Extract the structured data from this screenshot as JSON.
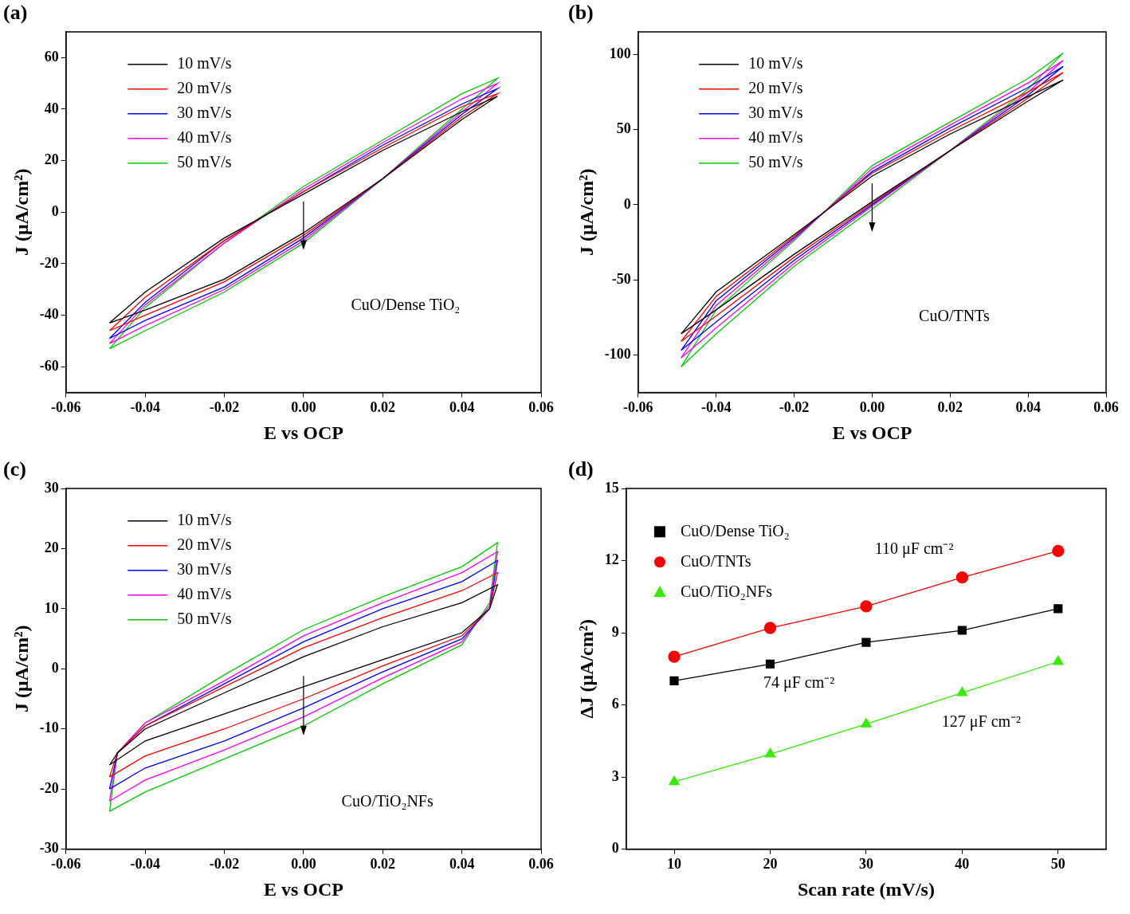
{
  "chart_data": [
    {
      "type": "scatter",
      "title": "(a)",
      "x_label": "E vs OCP",
      "y_label": "J (μA/cm²)",
      "annotations": [
        "CuO/Dense TiO₂"
      ],
      "xlim": [
        -0.06,
        0.06
      ],
      "xticks": [
        -0.06,
        -0.04,
        -0.02,
        {
          "value": 0,
          "label": "0.00"
        },
        0.02,
        0.04,
        0.06
      ],
      "ylim": [
        -70,
        70
      ],
      "yticks": [
        -60,
        -40,
        -20,
        0,
        20,
        40,
        60
      ],
      "grid": false,
      "legend": "upper left",
      "marker": "none",
      "line_style": "solid",
      "x": [
        -0.049,
        -0.04,
        -0.02,
        0,
        0.02,
        0.04,
        0.049,
        0.04,
        0.02,
        0,
        -0.02,
        -0.04,
        -0.049
      ],
      "series": [
        {
          "name": "10 mV/s",
          "color": "#000000",
          "values": [
            -43,
            -31,
            -10,
            7,
            24,
            39,
            45,
            36,
            13,
            -8,
            -26,
            -38,
            -43
          ]
        },
        {
          "name": "20 mV/s",
          "color": "#ff0000",
          "values": [
            -46,
            -33,
            -11,
            8,
            25,
            41,
            46,
            37,
            13,
            -9,
            -27,
            -40,
            -46
          ]
        },
        {
          "name": "30 mV/s",
          "color": "#0000ff",
          "values": [
            -49,
            -35,
            -11,
            8,
            26,
            42,
            48,
            38,
            13,
            -10,
            -29,
            -42,
            -49
          ]
        },
        {
          "name": "40 mV/s",
          "color": "#ff00ff",
          "values": [
            -51,
            -36,
            -12,
            9,
            27,
            44,
            50,
            39,
            13,
            -11,
            -30,
            -44,
            -51
          ]
        },
        {
          "name": "50 mV/s",
          "color": "#00cc00",
          "values": [
            -53,
            -37,
            -12,
            10,
            28,
            46,
            52,
            40,
            13,
            -12,
            -31,
            -46,
            -53
          ]
        }
      ]
    },
    {
      "type": "scatter",
      "title": "(b)",
      "x_label": "E vs OCP",
      "y_label": "J (μA/cm²)",
      "annotations": [
        "CuO/TNTs"
      ],
      "xlim": [
        -0.06,
        0.06
      ],
      "xticks": [
        -0.06,
        -0.04,
        -0.02,
        {
          "value": 0,
          "label": "0.00"
        },
        0.02,
        0.04,
        0.06
      ],
      "ylim": [
        -125,
        115
      ],
      "yticks": [
        -100,
        -50,
        0,
        50,
        100
      ],
      "grid": false,
      "legend": "upper left",
      "marker": "none",
      "line_style": "solid",
      "x": [
        -0.049,
        -0.04,
        -0.02,
        0,
        0.02,
        0.04,
        0.049,
        0.04,
        0.02,
        0,
        -0.02,
        -0.04,
        -0.049
      ],
      "series": [
        {
          "name": "10 mV/s",
          "color": "#000000",
          "values": [
            -86,
            -58,
            -20,
            19,
            47,
            72,
            83,
            69,
            36,
            2,
            -33,
            -70,
            -86
          ]
        },
        {
          "name": "20 mV/s",
          "color": "#ff0000",
          "values": [
            -91,
            -61,
            -21,
            21,
            49,
            75,
            88,
            71,
            36,
            1,
            -35,
            -74,
            -91
          ]
        },
        {
          "name": "30 mV/s",
          "color": "#0000ff",
          "values": [
            -97,
            -64,
            -22,
            22,
            51,
            78,
            92,
            73,
            36,
            0,
            -37,
            -78,
            -97
          ]
        },
        {
          "name": "40 mV/s",
          "color": "#ff00ff",
          "values": [
            -102,
            -67,
            -23,
            24,
            53,
            81,
            96,
            75,
            36,
            -1,
            -39,
            -82,
            -102
          ]
        },
        {
          "name": "50 mV/s",
          "color": "#00cc00",
          "values": [
            -108,
            -70,
            -24,
            26,
            55,
            84,
            101,
            77,
            36,
            -3,
            -41,
            -86,
            -108
          ]
        }
      ]
    },
    {
      "type": "scatter",
      "title": "(c)",
      "x_label": "E vs OCP",
      "y_label": "J (μA/cm²)",
      "annotations": [
        "CuO/TiO₂NFs"
      ],
      "xlim": [
        -0.06,
        0.06
      ],
      "xticks": [
        -0.06,
        -0.04,
        -0.02,
        {
          "value": 0,
          "label": "0.00"
        },
        0.02,
        0.04,
        0.06
      ],
      "ylim": [
        -30,
        30
      ],
      "yticks": [
        -30,
        -20,
        -10,
        0,
        10,
        20,
        30
      ],
      "grid": false,
      "legend": "upper left",
      "marker": "none",
      "line_style": "solid",
      "x": [
        -0.049,
        -0.047,
        -0.04,
        -0.02,
        0,
        0.02,
        0.04,
        0.049,
        0.049,
        0.047,
        0.04,
        0.02,
        0,
        -0.02,
        -0.04,
        -0.049
      ],
      "series": [
        {
          "name": "10 mV/s",
          "color": "#000000",
          "values": [
            -16,
            -14,
            -10,
            -4,
            2,
            7,
            11,
            14,
            14,
            10,
            6,
            1.5,
            -3,
            -7.5,
            -12,
            -16
          ]
        },
        {
          "name": "20 mV/s",
          "color": "#ff0000",
          "values": [
            -18,
            -14,
            -9.5,
            -3,
            3.5,
            8.5,
            13,
            16,
            16,
            10,
            5.5,
            0.5,
            -5,
            -10,
            -14.5,
            -18
          ]
        },
        {
          "name": "30 mV/s",
          "color": "#0000ff",
          "values": [
            -20,
            -14,
            -9.5,
            -2.5,
            4.5,
            10,
            14.5,
            18,
            18,
            10,
            5,
            -0.5,
            -6.5,
            -12,
            -16.5,
            -20
          ]
        },
        {
          "name": "40 mV/s",
          "color": "#ff00ff",
          "values": [
            -22,
            -14,
            -9,
            -2,
            5.5,
            11,
            16,
            19.5,
            19.5,
            10.5,
            4.5,
            -1.5,
            -8,
            -13.5,
            -18.5,
            -22
          ]
        },
        {
          "name": "50 mV/s",
          "color": "#00cc00",
          "values": [
            -23.7,
            -14,
            -9,
            -1,
            6.5,
            12,
            17,
            21,
            21,
            11,
            4,
            -2.5,
            -9.5,
            -15,
            -20.5,
            -23.7
          ]
        }
      ]
    },
    {
      "type": "scatter",
      "title": "(d)",
      "x_label": "Scan rate (mV/s)",
      "y_label": "ΔJ (μA/cm²)",
      "annotations": [
        "110 μF cm⁻²",
        "74 μF cm⁻²",
        "127 μF cm⁻²"
      ],
      "xlim": [
        5,
        55
      ],
      "xticks": [
        10,
        20,
        30,
        40,
        50
      ],
      "ylim": [
        0,
        15
      ],
      "yticks": [
        0,
        3,
        6,
        9,
        12,
        15
      ],
      "grid": false,
      "legend": "upper left",
      "line_style": "solid",
      "x": [
        10,
        20,
        30,
        40,
        50
      ],
      "series": [
        {
          "name": "CuO/Dense TiO₂",
          "color": "#000000",
          "marker": "square",
          "values": [
            7.0,
            7.7,
            8.6,
            9.1,
            10.0
          ]
        },
        {
          "name": "CuO/TNTs",
          "color": "#ff0000",
          "marker": "circle",
          "values": [
            8.0,
            9.2,
            10.1,
            11.3,
            12.4
          ]
        },
        {
          "name": "CuO/TiO₂NFs",
          "color": "#33ee00",
          "marker": "triangle",
          "values": [
            2.8,
            3.95,
            5.2,
            6.5,
            7.8
          ]
        }
      ]
    }
  ]
}
